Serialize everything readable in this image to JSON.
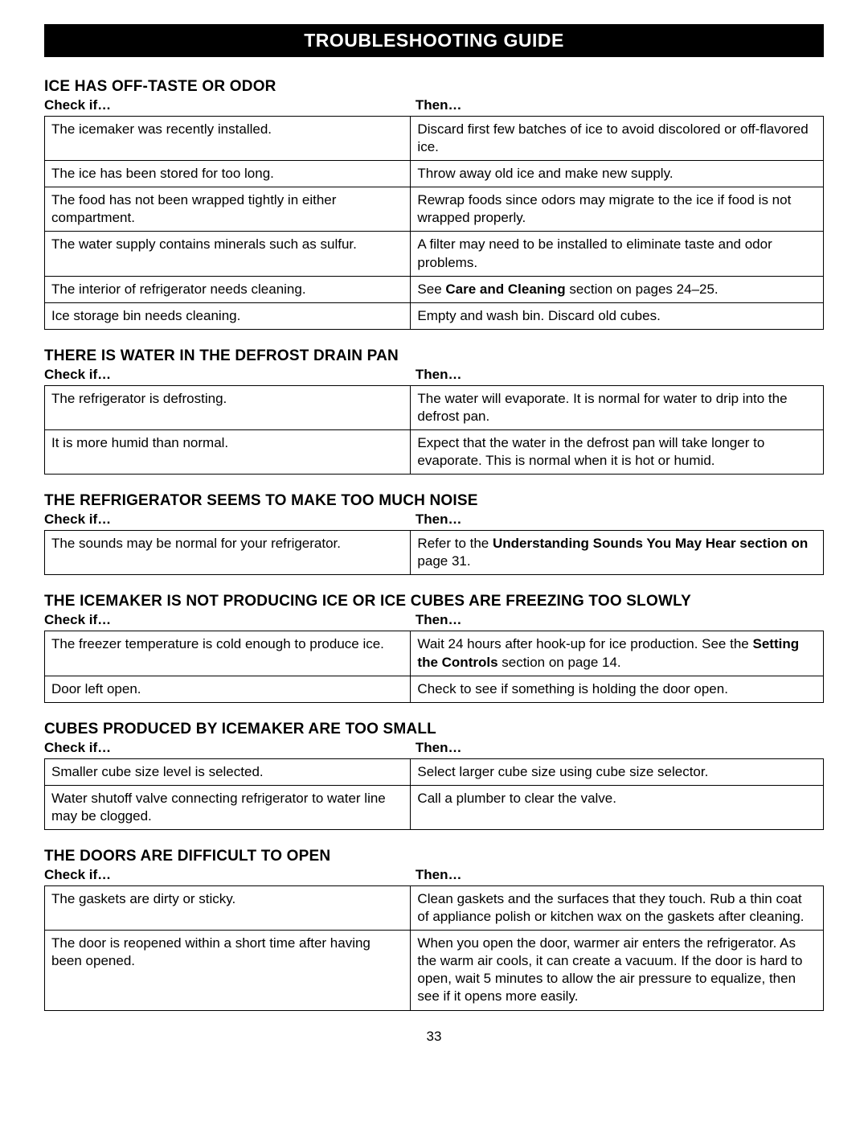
{
  "page_title": "TROUBLESHOOTING GUIDE",
  "page_number": "33",
  "colors": {
    "banner_bg": "#000000",
    "banner_text": "#ffffff",
    "body_bg": "#ffffff",
    "text": "#000000",
    "border": "#000000"
  },
  "typography": {
    "banner_fontsize": 23,
    "heading_fontsize": 19,
    "header_fontsize": 17,
    "body_fontsize": 17,
    "font_family": "Arial, Helvetica, sans-serif"
  },
  "header_labels": {
    "left": "Check if…",
    "right": "Then…"
  },
  "sections": [
    {
      "heading": "ICE HAS OFF-TASTE OR ODOR",
      "rows": [
        {
          "check": "The icemaker was recently installed.",
          "then": "Discard first few batches of ice to avoid discolored or off-flavored ice."
        },
        {
          "check": "The ice has been stored for too long.",
          "then": "Throw away old ice and make new supply."
        },
        {
          "check": "The food has not been wrapped tightly in either compartment.",
          "then": "Rewrap foods since odors may migrate to the ice if food is not wrapped properly."
        },
        {
          "check": "The water supply contains minerals such as sulfur.",
          "then": "A filter may need to be installed to eliminate taste and odor problems."
        },
        {
          "check": "The interior of refrigerator needs cleaning.",
          "then_html": "See <b>Care and Cleaning</b> section on pages 24–25."
        },
        {
          "check": "Ice storage bin needs cleaning.",
          "then": "Empty and wash bin. Discard old cubes."
        }
      ]
    },
    {
      "heading": "THERE IS WATER IN THE DEFROST DRAIN PAN",
      "rows": [
        {
          "check": "The refrigerator is defrosting.",
          "then": "The water will evaporate. It is normal for water to drip into the defrost pan."
        },
        {
          "check": "It is more humid than normal.",
          "then": "Expect that the water in the defrost pan will take longer to evaporate. This is normal when it is hot or humid."
        }
      ]
    },
    {
      "heading": "THE REFRIGERATOR SEEMS TO MAKE TOO MUCH NOISE",
      "rows": [
        {
          "check": "The sounds may be normal for your refrigerator.",
          "then_html": "Refer to the <b>Understanding Sounds You May Hear section on</b> page 31."
        }
      ]
    },
    {
      "heading": "THE ICEMAKER IS NOT PRODUCING ICE OR ICE CUBES ARE FREEZING TOO SLOWLY",
      "rows": [
        {
          "check": "The freezer temperature is cold enough to produce ice.",
          "then_html": "Wait 24 hours after hook-up for ice production. See the <b>Setting the Controls</b> section on page 14."
        },
        {
          "check": "Door left open.",
          "then": "Check to see if something is holding the door open."
        }
      ]
    },
    {
      "heading": "CUBES PRODUCED BY ICEMAKER ARE TOO SMALL",
      "rows": [
        {
          "check": "Smaller cube size level is selected.",
          "then": "Select larger cube size using cube size selector."
        },
        {
          "check": "Water shutoff valve connecting refrigerator to water line may be clogged.",
          "then": "Call a plumber to clear the valve."
        }
      ]
    },
    {
      "heading": "THE DOORS ARE DIFFICULT TO OPEN",
      "rows": [
        {
          "check": "The gaskets are dirty or sticky.",
          "then": "Clean gaskets and the surfaces that they touch. Rub a thin coat of appliance polish or kitchen wax on the gaskets after cleaning."
        },
        {
          "check": "The door is reopened within a short time after having been opened.",
          "then": "When you open the door, warmer air enters the refrigerator. As the warm air cools, it can create a vacuum. If the door is hard to open, wait 5 minutes to allow the air pressure to equalize, then see if it opens more easily."
        }
      ]
    }
  ]
}
